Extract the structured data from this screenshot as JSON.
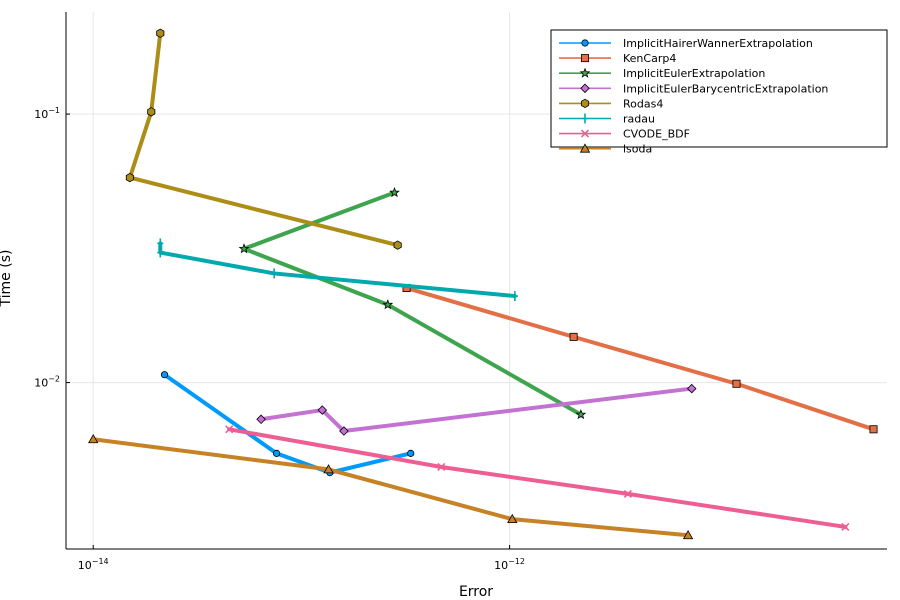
{
  "chart_data": {
    "type": "line",
    "title": "",
    "xlabel": "Error",
    "ylabel": "Time (s)",
    "xscale": "log",
    "yscale": "log",
    "xlim": [
      7.4e-15,
      6.5e-11
    ],
    "ylim": [
      0.0024,
      0.24
    ],
    "grid": true,
    "legend_position": "top-right",
    "x_ticks": [
      {
        "value": 1e-14,
        "base": "10",
        "exp": "−14"
      },
      {
        "value": 1e-12,
        "base": "10",
        "exp": "−12"
      }
    ],
    "y_ticks": [
      {
        "value": 0.01,
        "base": "10",
        "exp": "−2"
      },
      {
        "value": 0.1,
        "base": "10",
        "exp": "−1"
      }
    ],
    "series": [
      {
        "name": "ImplicitHairerWannerExtrapolation",
        "color": "#009AFA",
        "marker": "circle",
        "points": [
          [
            2.2e-14,
            0.0107
          ],
          [
            7.6e-14,
            0.00545
          ],
          [
            1.37e-13,
            0.00462
          ],
          [
            3.35e-13,
            0.00545
          ]
        ]
      },
      {
        "name": "KenCarp4",
        "color": "#E36F47",
        "marker": "square",
        "points": [
          [
            3.2e-13,
            0.0225
          ],
          [
            2.03e-12,
            0.0148
          ],
          [
            1.23e-11,
            0.0099
          ],
          [
            5.6e-11,
            0.0067
          ]
        ]
      },
      {
        "name": "ImplicitEulerExtrapolation",
        "color": "#3EA44E",
        "marker": "star",
        "points": [
          [
            2.8e-13,
            0.051
          ],
          [
            5.3e-14,
            0.0315
          ],
          [
            2.6e-13,
            0.0195
          ],
          [
            2.2e-12,
            0.0076
          ]
        ]
      },
      {
        "name": "ImplicitEulerBarycentricExtrapolation",
        "color": "#C371D2",
        "marker": "diamond",
        "points": [
          [
            6.4e-14,
            0.0073
          ],
          [
            1.26e-13,
            0.0079
          ],
          [
            1.6e-13,
            0.0066
          ],
          [
            7.5e-12,
            0.0095
          ]
        ]
      },
      {
        "name": "Rodas4",
        "color": "#AC8D18",
        "marker": "hexagon",
        "points": [
          [
            2.1e-14,
            0.2
          ],
          [
            1.9e-14,
            0.102
          ],
          [
            1.5e-14,
            0.058
          ],
          [
            2.9e-13,
            0.0325
          ]
        ]
      },
      {
        "name": "radau",
        "color": "#00A9AD",
        "marker": "vline",
        "points": [
          [
            2.1e-14,
            0.033
          ],
          [
            2.1e-14,
            0.0305
          ],
          [
            7.4e-14,
            0.0255
          ],
          [
            1.06e-12,
            0.021
          ]
        ]
      },
      {
        "name": "CVODE_BDF",
        "color": "#ED5E93",
        "marker": "x",
        "points": [
          [
            4.5e-14,
            0.0067
          ],
          [
            4.7e-13,
            0.00485
          ],
          [
            3.7e-12,
            0.00385
          ],
          [
            4.1e-11,
            0.0029
          ]
        ]
      },
      {
        "name": "lsoda",
        "color": "#C68225",
        "marker": "triangle",
        "points": [
          [
            1e-14,
            0.00615
          ],
          [
            1.35e-13,
            0.00475
          ],
          [
            1.03e-12,
            0.0031
          ],
          [
            7.2e-12,
            0.0027
          ]
        ]
      }
    ]
  }
}
